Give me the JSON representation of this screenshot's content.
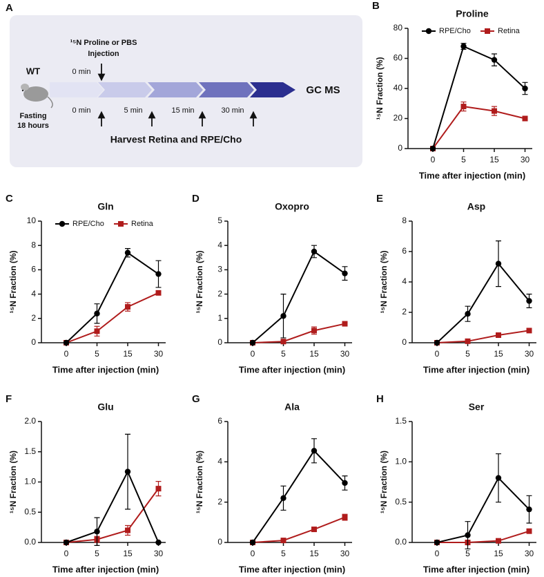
{
  "diagram": {
    "label": "A",
    "subject": "WT",
    "fasting": [
      "Fasting",
      "18 hours"
    ],
    "injection": [
      "¹⁵N Proline or PBS",
      "Injection"
    ],
    "injection_time": "0 min",
    "harvest_times": [
      "0 min",
      "5 min",
      "15 min",
      "30 min"
    ],
    "endpoint": "GC MS",
    "harvest": "Harvest Retina and RPE/Cho"
  },
  "chart_data": [
    {
      "type": "line",
      "label": "B",
      "title": "Proline",
      "x_label": "Time after injection (min)",
      "y_label": "¹⁵N Fraction (%)",
      "categories": [
        "0",
        "5",
        "15",
        "30"
      ],
      "ylim": [
        0,
        80
      ],
      "yticks": [
        0,
        20,
        40,
        60,
        80
      ],
      "legend": "top",
      "series": [
        {
          "name": "RPE/Cho",
          "color": "#000000",
          "marker": "circle",
          "values": [
            0,
            68,
            59,
            40
          ],
          "errors": [
            0,
            2,
            4,
            4
          ]
        },
        {
          "name": "Retina",
          "color": "#b01c1c",
          "marker": "square",
          "values": [
            0,
            28,
            25,
            20
          ],
          "errors": [
            0,
            3,
            3,
            1
          ]
        }
      ]
    },
    {
      "type": "line",
      "label": "C",
      "title": "Gln",
      "x_label": "Time after injection (min)",
      "y_label": "¹⁵N Fraction (%)",
      "categories": [
        "0",
        "5",
        "15",
        "30"
      ],
      "ylim": [
        0,
        10
      ],
      "yticks": [
        0,
        2,
        4,
        6,
        8,
        10
      ],
      "legend": "top",
      "series": [
        {
          "name": "RPE/Cho",
          "color": "#000000",
          "marker": "circle",
          "values": [
            0,
            2.4,
            7.4,
            5.65
          ],
          "errors": [
            0,
            0.8,
            0.35,
            1.1
          ]
        },
        {
          "name": "Retina",
          "color": "#b01c1c",
          "marker": "square",
          "values": [
            0,
            0.95,
            2.95,
            4.1
          ],
          "errors": [
            0,
            0.4,
            0.35,
            0.1
          ]
        }
      ]
    },
    {
      "type": "line",
      "label": "D",
      "title": "Oxopro",
      "x_label": "Time after injection (min)",
      "y_label": "¹⁵N Fraction (%)",
      "categories": [
        "0",
        "5",
        "15",
        "30"
      ],
      "ylim": [
        0,
        5
      ],
      "yticks": [
        0,
        1,
        2,
        3,
        4,
        5
      ],
      "series": [
        {
          "color": "#000000",
          "marker": "circle",
          "values": [
            0,
            1.1,
            3.75,
            2.85
          ],
          "errors": [
            0,
            0.9,
            0.25,
            0.28
          ]
        },
        {
          "color": "#b01c1c",
          "marker": "square",
          "values": [
            0,
            0.05,
            0.5,
            0.78
          ],
          "errors": [
            0,
            0.05,
            0.15,
            0.05
          ]
        }
      ]
    },
    {
      "type": "line",
      "label": "E",
      "title": "Asp",
      "x_label": "Time after injection (min)",
      "y_label": "¹⁵N Fraction (%)",
      "categories": [
        "0",
        "5",
        "15",
        "30"
      ],
      "ylim": [
        0,
        8
      ],
      "yticks": [
        0,
        2,
        4,
        6,
        8
      ],
      "series": [
        {
          "color": "#000000",
          "marker": "circle",
          "values": [
            0,
            1.9,
            5.2,
            2.75
          ],
          "errors": [
            0,
            0.5,
            1.5,
            0.45
          ]
        },
        {
          "color": "#b01c1c",
          "marker": "square",
          "values": [
            0,
            0.1,
            0.5,
            0.8
          ],
          "errors": [
            0,
            0.05,
            0.05,
            0.05
          ]
        }
      ]
    },
    {
      "type": "line",
      "label": "F",
      "title": "Glu",
      "x_label": "Time after injection (min)",
      "y_label": "¹⁵N Fraction (%)",
      "categories": [
        "0",
        "5",
        "15",
        "30"
      ],
      "ylim": [
        0,
        2
      ],
      "yticks": [
        {
          "value": 0,
          "label": "0.0"
        },
        {
          "value": 0.5,
          "label": "0.5"
        },
        {
          "value": 1,
          "label": "1.0"
        },
        {
          "value": 1.5,
          "label": "1.5"
        },
        {
          "value": 2,
          "label": "2.0"
        }
      ],
      "series": [
        {
          "color": "#000000",
          "marker": "circle",
          "values": [
            0,
            0.18,
            1.17,
            0
          ],
          "errors": [
            0,
            0.23,
            0.62,
            0
          ]
        },
        {
          "color": "#b01c1c",
          "marker": "square",
          "values": [
            0,
            0.05,
            0.2,
            0.89
          ],
          "errors": [
            0,
            0.05,
            0.08,
            0.12
          ]
        }
      ]
    },
    {
      "type": "line",
      "label": "G",
      "title": "Ala",
      "x_label": "Time after injection (min)",
      "y_label": "¹⁵N Fraction (%)",
      "categories": [
        "0",
        "5",
        "15",
        "30"
      ],
      "ylim": [
        0,
        6
      ],
      "yticks": [
        0,
        2,
        4,
        6
      ],
      "series": [
        {
          "color": "#000000",
          "marker": "circle",
          "values": [
            0,
            2.2,
            4.55,
            2.95
          ],
          "errors": [
            0,
            0.6,
            0.6,
            0.35
          ]
        },
        {
          "color": "#b01c1c",
          "marker": "square",
          "values": [
            0,
            0.1,
            0.65,
            1.25
          ],
          "errors": [
            0,
            0.05,
            0.05,
            0.15
          ]
        }
      ]
    },
    {
      "type": "line",
      "label": "H",
      "title": "Ser",
      "x_label": "Time after injection (min)",
      "y_label": "¹⁵N Fraction (%)",
      "categories": [
        "0",
        "5",
        "15",
        "30"
      ],
      "ylim": [
        0,
        1.5
      ],
      "yticks": [
        {
          "value": 0,
          "label": "0.0"
        },
        {
          "value": 0.5,
          "label": "0.5"
        },
        {
          "value": 1,
          "label": "1.0"
        },
        {
          "value": 1.5,
          "label": "1.5"
        }
      ],
      "series": [
        {
          "color": "#000000",
          "marker": "circle",
          "values": [
            0,
            0.09,
            0.8,
            0.41
          ],
          "errors": [
            0,
            0.17,
            0.3,
            0.17
          ]
        },
        {
          "color": "#b01c1c",
          "marker": "square",
          "values": [
            0,
            0,
            0.02,
            0.14
          ],
          "errors": [
            0,
            0,
            0.02,
            0.02
          ]
        }
      ]
    }
  ]
}
